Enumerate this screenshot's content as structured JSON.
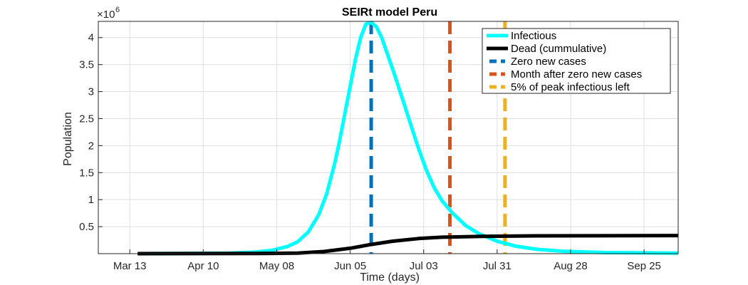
{
  "chart_data": {
    "type": "line",
    "title": "SEIRt model Peru",
    "xlabel": "Time (days)",
    "ylabel": "Population",
    "y_exponent_label": "×10",
    "y_exponent_power": "6",
    "xlim": [
      "2020-03-01",
      "2020-10-08"
    ],
    "ylim": [
      0,
      4.3
    ],
    "grid": true,
    "legend_position": "top-right",
    "x_ticks": [
      {
        "date": "2020-03-13",
        "label": "Mar 13"
      },
      {
        "date": "2020-04-10",
        "label": "Apr 10"
      },
      {
        "date": "2020-05-08",
        "label": "May 08"
      },
      {
        "date": "2020-06-05",
        "label": "Jun 05"
      },
      {
        "date": "2020-07-03",
        "label": "Jul 03"
      },
      {
        "date": "2020-07-31",
        "label": "Jul 31"
      },
      {
        "date": "2020-08-28",
        "label": "Aug 28"
      },
      {
        "date": "2020-09-25",
        "label": "Sep 25"
      }
    ],
    "y_ticks": [
      {
        "value": 0.5,
        "label": "0.5"
      },
      {
        "value": 1,
        "label": "1"
      },
      {
        "value": 1.5,
        "label": "1.5"
      },
      {
        "value": 2,
        "label": "2"
      },
      {
        "value": 2.5,
        "label": "2.5"
      },
      {
        "value": 3,
        "label": "3"
      },
      {
        "value": 3.5,
        "label": "3.5"
      },
      {
        "value": 4,
        "label": "4"
      }
    ],
    "series": [
      {
        "name": "Infectious",
        "color": "#00ffff",
        "style": "solid",
        "points": [
          [
            "2020-03-16",
            0.0
          ],
          [
            "2020-04-01",
            0.003
          ],
          [
            "2020-04-20",
            0.01
          ],
          [
            "2020-04-30",
            0.03
          ],
          [
            "2020-05-06",
            0.06
          ],
          [
            "2020-05-12",
            0.13
          ],
          [
            "2020-05-16",
            0.22
          ],
          [
            "2020-05-20",
            0.4
          ],
          [
            "2020-05-24",
            0.72
          ],
          [
            "2020-05-27",
            1.1
          ],
          [
            "2020-05-30",
            1.65
          ],
          [
            "2020-06-01",
            2.1
          ],
          [
            "2020-06-03",
            2.6
          ],
          [
            "2020-06-05",
            3.1
          ],
          [
            "2020-06-07",
            3.6
          ],
          [
            "2020-06-09",
            4.0
          ],
          [
            "2020-06-11",
            4.25
          ],
          [
            "2020-06-13",
            4.28
          ],
          [
            "2020-06-15",
            4.2
          ],
          [
            "2020-06-17",
            4.0
          ],
          [
            "2020-06-19",
            3.72
          ],
          [
            "2020-06-22",
            3.3
          ],
          [
            "2020-06-25",
            2.85
          ],
          [
            "2020-06-28",
            2.4
          ],
          [
            "2020-07-01",
            1.95
          ],
          [
            "2020-07-04",
            1.55
          ],
          [
            "2020-07-07",
            1.22
          ],
          [
            "2020-07-10",
            0.98
          ],
          [
            "2020-07-14",
            0.75
          ],
          [
            "2020-07-19",
            0.52
          ],
          [
            "2020-07-24",
            0.37
          ],
          [
            "2020-07-31",
            0.23
          ],
          [
            "2020-08-07",
            0.14
          ],
          [
            "2020-08-15",
            0.08
          ],
          [
            "2020-08-25",
            0.045
          ],
          [
            "2020-09-10",
            0.02
          ],
          [
            "2020-10-08",
            0.01
          ]
        ]
      },
      {
        "name": "Dead (cummulative)",
        "color": "#000000",
        "style": "solid",
        "points": [
          [
            "2020-03-16",
            0.0
          ],
          [
            "2020-05-01",
            0.002
          ],
          [
            "2020-05-16",
            0.01
          ],
          [
            "2020-05-26",
            0.04
          ],
          [
            "2020-06-05",
            0.1
          ],
          [
            "2020-06-13",
            0.17
          ],
          [
            "2020-06-21",
            0.23
          ],
          [
            "2020-07-01",
            0.28
          ],
          [
            "2020-07-10",
            0.305
          ],
          [
            "2020-07-25",
            0.32
          ],
          [
            "2020-08-15",
            0.33
          ],
          [
            "2020-10-08",
            0.335
          ]
        ]
      },
      {
        "name": "Zero new cases",
        "color": "#0072bd",
        "style": "dashed-vertical",
        "date": "2020-06-13"
      },
      {
        "name": "Month after zero new cases",
        "color": "#d95319",
        "style": "dashed-vertical",
        "date": "2020-07-13"
      },
      {
        "name": "5% of peak infectious left",
        "color": "#edb120",
        "style": "dashed-vertical",
        "date": "2020-08-03"
      }
    ]
  }
}
